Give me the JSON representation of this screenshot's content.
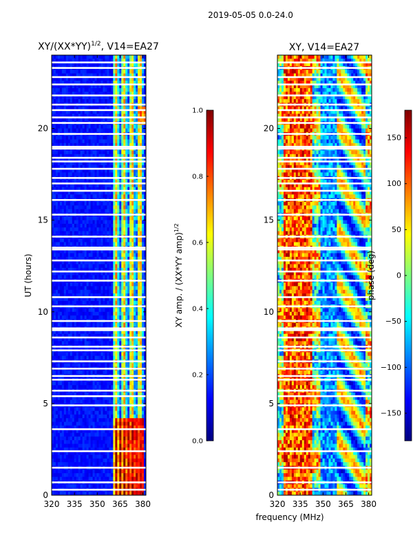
{
  "figure_title": "2019-05-05 0.0-24.0",
  "colors": {
    "jet": [
      "#00007f",
      "#0000ff",
      "#007fff",
      "#00ffff",
      "#7fff7f",
      "#ffff00",
      "#ff7f00",
      "#ff0000",
      "#7f0000"
    ]
  },
  "chart_data": [
    {
      "id": "amp",
      "type": "heatmap",
      "title_main": "XY/(XX*YY)",
      "title_exp": "1/2",
      "title_rest": ", V14=EA27",
      "xlabel": "",
      "ylabel": "UT (hours)",
      "xlim": [
        320,
        382
      ],
      "ylim": [
        0,
        24
      ],
      "xticks": [
        320,
        335,
        350,
        365,
        380
      ],
      "yticks": [
        0,
        5,
        10,
        15,
        20
      ],
      "flagged_hours": [
        0.3,
        0.7,
        1.5,
        2.4,
        3.6,
        4.9,
        5.4,
        5.7,
        6.3,
        6.5,
        6.9,
        7.3,
        7.9,
        8.1,
        8.6,
        9.0,
        9.1,
        9.5,
        10.3,
        10.8,
        11.7,
        12.2,
        12.8,
        13.4,
        13.5,
        14.1,
        15.3,
        16.1,
        16.6,
        17.0,
        17.3,
        17.8,
        18.2,
        18.4,
        18.9,
        19.0,
        19.7,
        20.3,
        20.6,
        21.0,
        21.3,
        21.8,
        22.4,
        22.8,
        23.3,
        23.6
      ],
      "colorbar": {
        "label_main": "XY amp. / (XX*YY amp)",
        "label_exp": "1/2",
        "range": [
          0.0,
          1.0
        ],
        "ticks": [
          "0.0",
          "0.2",
          "0.4",
          "0.6",
          "0.8",
          "1.0"
        ],
        "tick_values": [
          0.0,
          0.2,
          0.4,
          0.6,
          0.8,
          1.0
        ]
      }
    },
    {
      "id": "phase",
      "type": "heatmap",
      "title_main": "XY, V14=EA27",
      "xlabel": "frequency (MHz)",
      "ylabel": "",
      "xlim": [
        320,
        382
      ],
      "ylim": [
        0,
        24
      ],
      "xticks": [
        320,
        335,
        350,
        365,
        380
      ],
      "yticks": [
        0,
        5,
        10,
        15,
        20
      ],
      "flagged_hours": [
        0.3,
        0.7,
        1.5,
        2.4,
        3.6,
        4.9,
        5.4,
        5.7,
        6.3,
        6.5,
        6.9,
        7.3,
        7.9,
        8.1,
        8.6,
        9.0,
        9.1,
        9.5,
        10.3,
        10.8,
        11.7,
        12.2,
        12.8,
        13.4,
        13.5,
        14.1,
        15.3,
        16.1,
        16.6,
        17.0,
        17.3,
        17.8,
        18.2,
        18.4,
        18.9,
        19.0,
        19.7,
        20.3,
        20.6,
        21.0,
        21.3,
        21.8,
        22.4,
        22.8,
        23.3,
        23.6
      ],
      "colorbar": {
        "label_main": "phase (deg)",
        "range": [
          -180,
          180
        ],
        "ticks": [
          "−150",
          "−100",
          "−50",
          "0",
          "50",
          "100",
          "150"
        ],
        "tick_values": [
          -150,
          -100,
          -50,
          0,
          50,
          100,
          150
        ]
      }
    }
  ]
}
